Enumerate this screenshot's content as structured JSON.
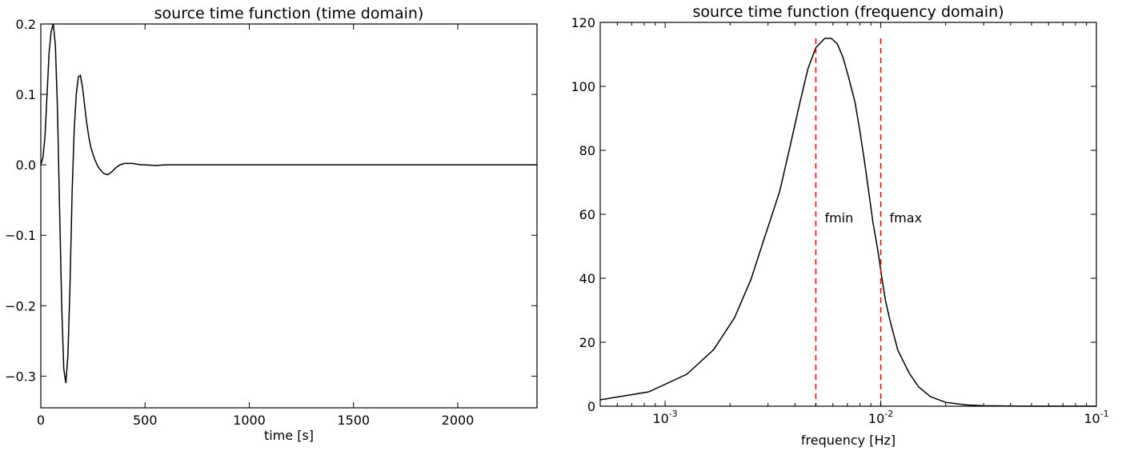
{
  "chart_data": [
    {
      "type": "line",
      "title": "source time function (time domain)",
      "xlabel": "time [s]",
      "ylabel": "",
      "xlim": [
        0,
        2380
      ],
      "ylim": [
        -0.345,
        0.2
      ],
      "x_scale": "linear",
      "grid": false,
      "xticks": [
        0,
        500,
        1000,
        1500,
        2000
      ],
      "xtick_labels": [
        "0",
        "500",
        "1000",
        "1500",
        "2000"
      ],
      "yticks": [
        0.2,
        0.1,
        0.0,
        -0.1,
        -0.2,
        -0.3
      ],
      "ytick_labels": [
        "0.2",
        "0.1",
        "0.0",
        "−0.1",
        "−0.2",
        "−0.3"
      ],
      "series": [
        {
          "color": "#000000",
          "x": [
            0,
            10,
            20,
            30,
            40,
            50,
            60,
            70,
            80,
            90,
            100,
            110,
            120,
            130,
            140,
            150,
            160,
            170,
            180,
            190,
            200,
            210,
            220,
            230,
            240,
            250,
            260,
            270,
            280,
            300,
            320,
            340,
            360,
            380,
            400,
            420,
            440,
            460,
            480,
            500,
            550,
            600,
            700,
            800,
            1000,
            1500,
            2000,
            2380
          ],
          "y": [
            0.0,
            0.01,
            0.04,
            0.1,
            0.16,
            0.19,
            0.2,
            0.17,
            0.08,
            -0.06,
            -0.2,
            -0.29,
            -0.31,
            -0.27,
            -0.17,
            -0.04,
            0.05,
            0.1,
            0.125,
            0.127,
            0.11,
            0.085,
            0.06,
            0.04,
            0.025,
            0.015,
            0.007,
            0.0,
            -0.005,
            -0.012,
            -0.014,
            -0.01,
            -0.004,
            0.0,
            0.002,
            0.002,
            0.002,
            0.001,
            0.0,
            0.0,
            -0.001,
            0.0,
            0.0,
            0.0,
            0.0,
            0.0,
            0.0,
            0.0
          ]
        }
      ]
    },
    {
      "type": "line",
      "title": "source time function (frequency domain)",
      "xlabel": "frequency [Hz]",
      "ylabel": "",
      "xlim": [
        0.0005,
        0.1
      ],
      "ylim": [
        0,
        120
      ],
      "x_scale": "log",
      "grid": false,
      "xticks": [
        0.001,
        0.01,
        0.1
      ],
      "xtick_labels": [
        {
          "base": "10",
          "exp": "-3"
        },
        {
          "base": "10",
          "exp": "-2"
        },
        {
          "base": "10",
          "exp": "-1"
        }
      ],
      "yticks": [
        0,
        20,
        40,
        60,
        80,
        100,
        120
      ],
      "ytick_labels": [
        "0",
        "20",
        "40",
        "60",
        "80",
        "100",
        "120"
      ],
      "series": [
        {
          "color": "#000000",
          "x": [
            0.0005,
            0.00084,
            0.00126,
            0.00168,
            0.0021,
            0.0025,
            0.0029,
            0.0034,
            0.0038,
            0.0042,
            0.0046,
            0.005,
            0.0055,
            0.0059,
            0.0063,
            0.0067,
            0.0071,
            0.0076,
            0.008,
            0.0084,
            0.0088,
            0.0092,
            0.0097,
            0.0101,
            0.0105,
            0.011,
            0.012,
            0.0135,
            0.015,
            0.017,
            0.02,
            0.025,
            0.03,
            0.04,
            0.05,
            0.07,
            0.1
          ],
          "y": [
            2,
            4.5,
            10,
            17.7,
            27.7,
            39.6,
            53,
            67.2,
            81.3,
            94.4,
            105.6,
            112.1,
            115,
            115,
            113.2,
            108.8,
            102.7,
            95,
            86.2,
            76.6,
            66.9,
            57.5,
            48.6,
            40.5,
            33.3,
            27.2,
            17.5,
            10.5,
            6,
            3,
            1.2,
            0.4,
            0.15,
            0.05,
            0,
            0,
            0
          ]
        }
      ],
      "vlines": [
        {
          "x": 0.005,
          "color": "#e00000",
          "style": "dashed",
          "label": "fmin",
          "label_y": 59
        },
        {
          "x": 0.01,
          "color": "#e00000",
          "style": "dashed",
          "label": "fmax",
          "label_y": 59
        }
      ]
    }
  ]
}
